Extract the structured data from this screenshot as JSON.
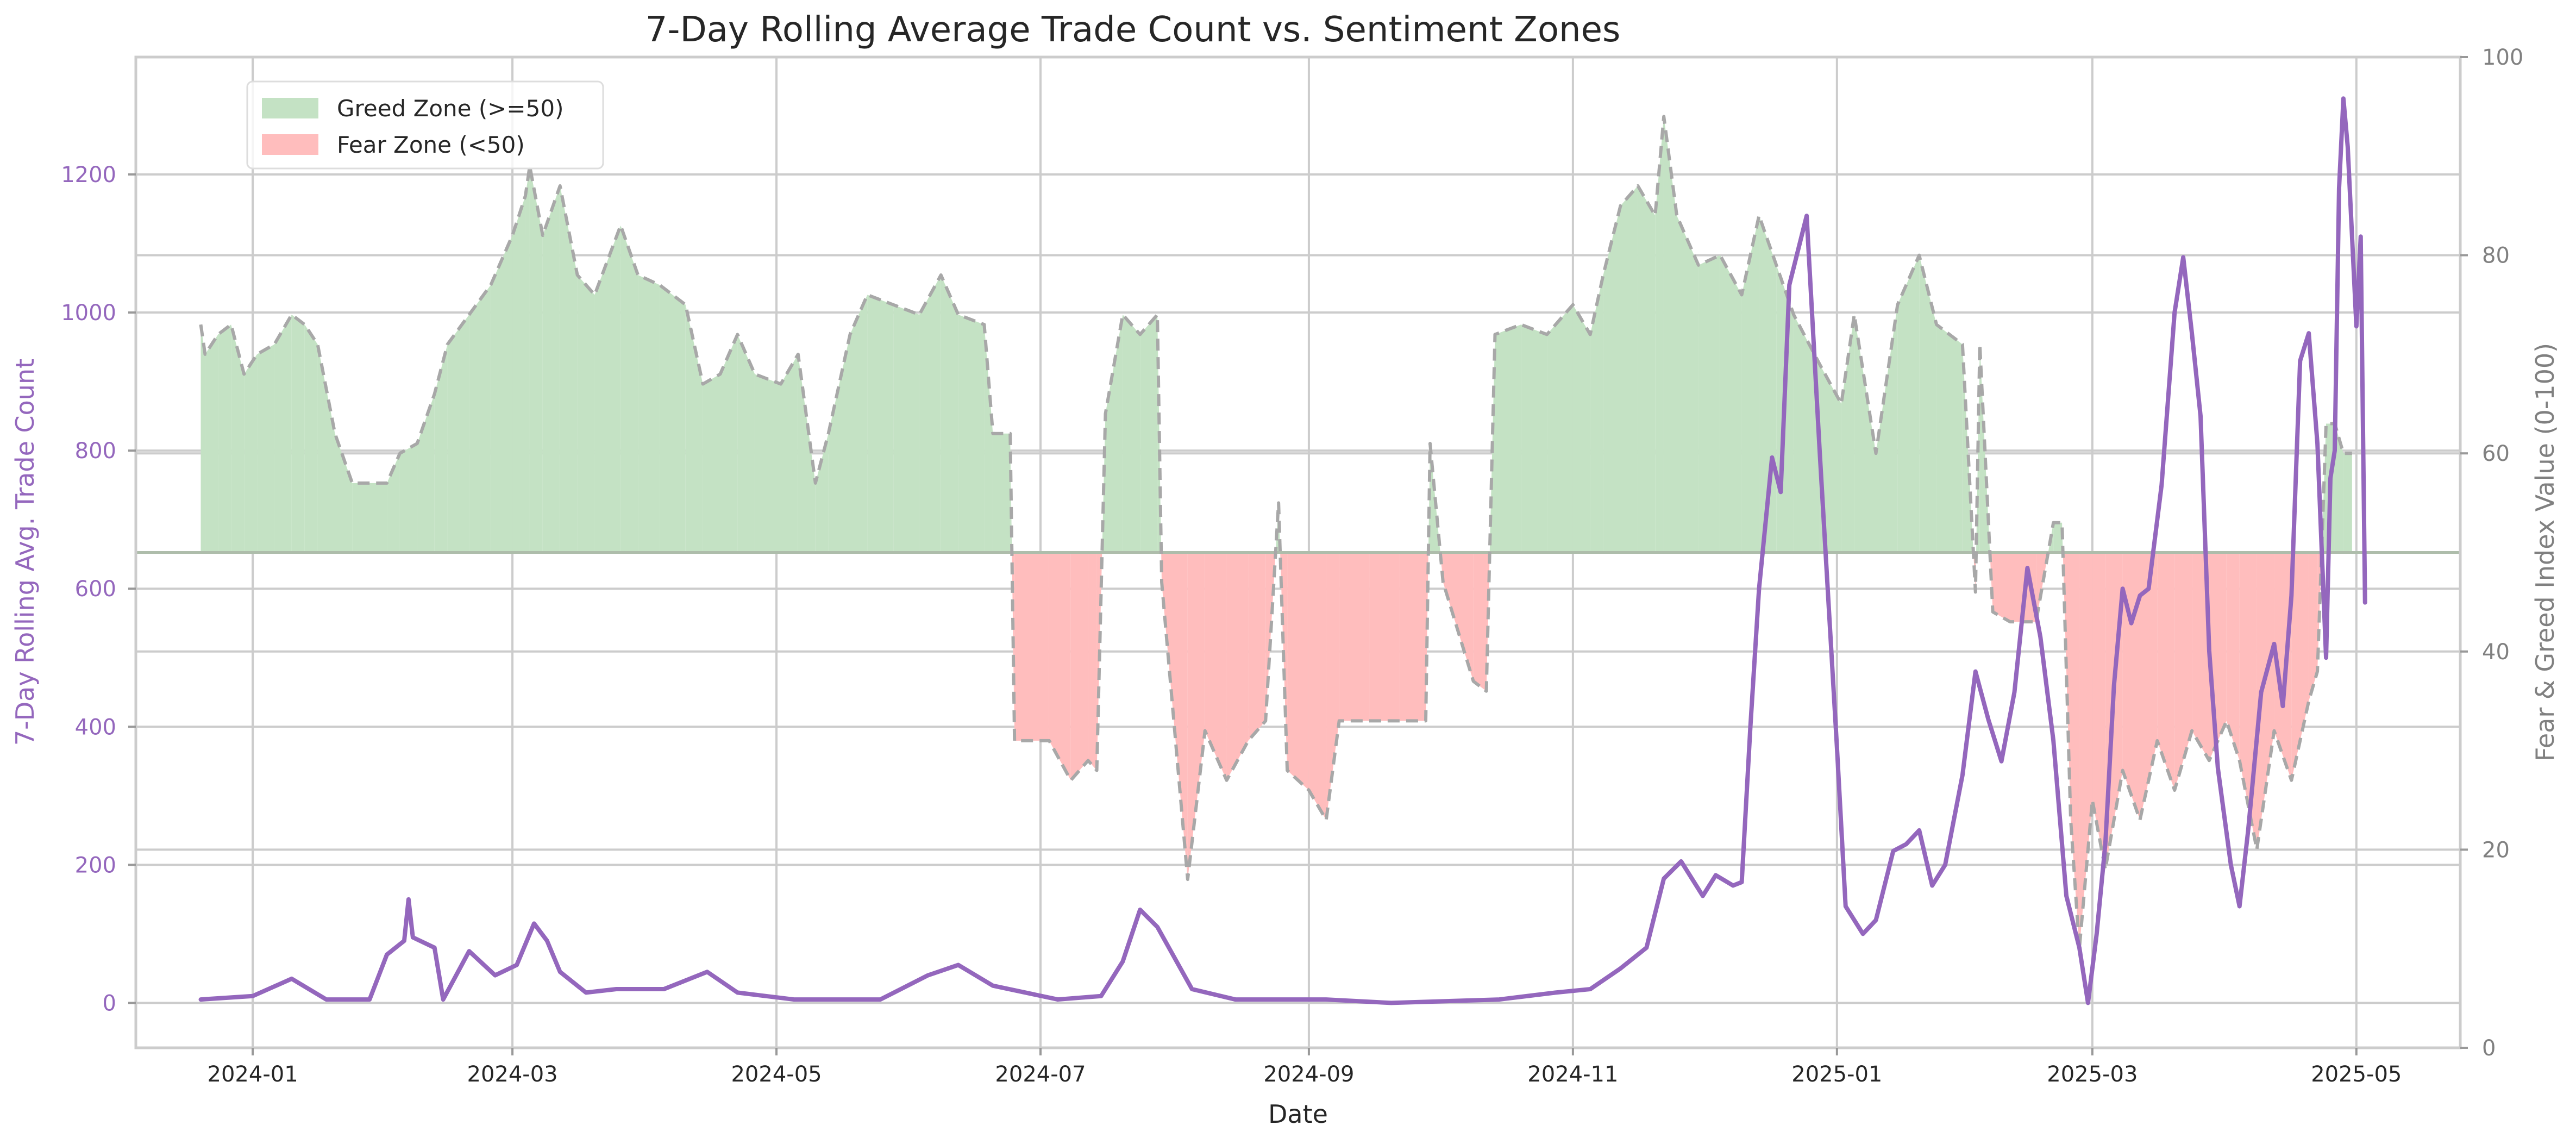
{
  "chart_data": {
    "type": "line",
    "title": "7-Day Rolling Average Trade Count vs. Sentiment Zones",
    "xlabel": "Date",
    "ylabel_left": "7-Day Rolling Avg. Trade Count",
    "ylabel_right": "Fear & Greed Index Value (0-100)",
    "x_range": [
      "2023-12-05",
      "2025-05-25"
    ],
    "ylim_left": [
      -65,
      1370
    ],
    "ylim_right": [
      0,
      100
    ],
    "x_ticks": [
      "2024-01",
      "2024-03",
      "2024-05",
      "2024-07",
      "2024-09",
      "2024-11",
      "2025-01",
      "2025-03",
      "2025-05"
    ],
    "y_ticks_left": [
      0,
      200,
      400,
      600,
      800,
      1000,
      1200
    ],
    "y_ticks_right": [
      0,
      20,
      40,
      60,
      80,
      100
    ],
    "threshold": 50,
    "grid": true,
    "legend_position": "upper-left",
    "legend": [
      {
        "label": "Greed Zone (>=50)",
        "color": "#c4e2c4"
      },
      {
        "label": "Fear Zone (<50)",
        "color": "#ffbdbd"
      }
    ],
    "colors": {
      "trade_line": "#9467bd",
      "fg_line": "#a8a8a8",
      "greed_fill": "#c4e2c4",
      "fear_fill": "#ffbdbd",
      "left_axis_text": "#9467bd",
      "right_axis_text": "#808080",
      "grid": "#cccccc"
    },
    "fear_greed_series": {
      "name": "Fear & Greed Index",
      "points": [
        [
          "2023-12-20",
          73
        ],
        [
          "2023-12-21",
          70
        ],
        [
          "2023-12-24",
          72
        ],
        [
          "2023-12-27",
          73
        ],
        [
          "2023-12-30",
          68
        ],
        [
          "2024-01-02",
          70
        ],
        [
          "2024-01-06",
          71
        ],
        [
          "2024-01-10",
          74
        ],
        [
          "2024-01-13",
          73
        ],
        [
          "2024-01-16",
          71
        ],
        [
          "2024-01-20",
          62
        ],
        [
          "2024-01-24",
          57
        ],
        [
          "2024-02-01",
          57
        ],
        [
          "2024-02-04",
          60
        ],
        [
          "2024-02-08",
          61
        ],
        [
          "2024-02-12",
          66
        ],
        [
          "2024-02-15",
          71
        ],
        [
          "2024-02-20",
          74
        ],
        [
          "2024-02-25",
          77
        ],
        [
          "2024-03-01",
          82
        ],
        [
          "2024-03-04",
          86
        ],
        [
          "2024-03-05",
          89
        ],
        [
          "2024-03-08",
          82
        ],
        [
          "2024-03-12",
          87
        ],
        [
          "2024-03-16",
          78
        ],
        [
          "2024-03-20",
          76
        ],
        [
          "2024-03-26",
          83
        ],
        [
          "2024-03-30",
          78
        ],
        [
          "2024-04-04",
          77
        ],
        [
          "2024-04-10",
          75
        ],
        [
          "2024-04-14",
          67
        ],
        [
          "2024-04-18",
          68
        ],
        [
          "2024-04-22",
          72
        ],
        [
          "2024-04-26",
          68
        ],
        [
          "2024-05-02",
          67
        ],
        [
          "2024-05-06",
          70
        ],
        [
          "2024-05-10",
          57
        ],
        [
          "2024-05-13",
          62
        ],
        [
          "2024-05-18",
          72
        ],
        [
          "2024-05-22",
          76
        ],
        [
          "2024-05-28",
          75
        ],
        [
          "2024-06-03",
          74
        ],
        [
          "2024-06-08",
          78
        ],
        [
          "2024-06-12",
          74
        ],
        [
          "2024-06-18",
          73
        ],
        [
          "2024-06-20",
          62
        ],
        [
          "2024-06-24",
          62
        ],
        [
          "2024-06-25",
          31
        ],
        [
          "2024-07-03",
          31
        ],
        [
          "2024-07-08",
          27
        ],
        [
          "2024-07-12",
          29
        ],
        [
          "2024-07-14",
          28
        ],
        [
          "2024-07-16",
          64
        ],
        [
          "2024-07-20",
          74
        ],
        [
          "2024-07-24",
          72
        ],
        [
          "2024-07-28",
          74
        ],
        [
          "2024-07-29",
          47
        ],
        [
          "2024-08-04",
          17
        ],
        [
          "2024-08-08",
          32
        ],
        [
          "2024-08-13",
          27
        ],
        [
          "2024-08-18",
          31
        ],
        [
          "2024-08-22",
          33
        ],
        [
          "2024-08-25",
          55
        ],
        [
          "2024-08-27",
          28
        ],
        [
          "2024-09-01",
          26
        ],
        [
          "2024-09-05",
          23
        ],
        [
          "2024-09-08",
          33
        ],
        [
          "2024-09-15",
          33
        ],
        [
          "2024-09-22",
          33
        ],
        [
          "2024-09-28",
          33
        ],
        [
          "2024-09-29",
          61
        ],
        [
          "2024-10-02",
          47
        ],
        [
          "2024-10-09",
          37
        ],
        [
          "2024-10-12",
          36
        ],
        [
          "2024-10-14",
          72
        ],
        [
          "2024-10-20",
          73
        ],
        [
          "2024-10-26",
          72
        ],
        [
          "2024-11-01",
          75
        ],
        [
          "2024-11-05",
          72
        ],
        [
          "2024-11-08",
          78
        ],
        [
          "2024-11-12",
          85
        ],
        [
          "2024-11-16",
          87
        ],
        [
          "2024-11-20",
          84
        ],
        [
          "2024-11-22",
          94
        ],
        [
          "2024-11-25",
          84
        ],
        [
          "2024-11-30",
          79
        ],
        [
          "2024-12-05",
          80
        ],
        [
          "2024-12-10",
          76
        ],
        [
          "2024-12-14",
          84
        ],
        [
          "2024-12-18",
          79
        ],
        [
          "2024-12-22",
          74
        ],
        [
          "2024-12-28",
          69
        ],
        [
          "2025-01-02",
          65
        ],
        [
          "2025-01-05",
          74
        ],
        [
          "2025-01-10",
          60
        ],
        [
          "2025-01-15",
          75
        ],
        [
          "2025-01-20",
          80
        ],
        [
          "2025-01-24",
          73
        ],
        [
          "2025-01-30",
          71
        ],
        [
          "2025-02-02",
          46
        ],
        [
          "2025-02-03",
          71
        ],
        [
          "2025-02-06",
          44
        ],
        [
          "2025-02-10",
          43
        ],
        [
          "2025-02-16",
          43
        ],
        [
          "2025-02-20",
          53
        ],
        [
          "2025-02-22",
          53
        ],
        [
          "2025-02-24",
          23
        ],
        [
          "2025-02-26",
          10
        ],
        [
          "2025-03-01",
          25
        ],
        [
          "2025-03-04",
          18
        ],
        [
          "2025-03-08",
          28
        ],
        [
          "2025-03-12",
          23
        ],
        [
          "2025-03-16",
          31
        ],
        [
          "2025-03-20",
          26
        ],
        [
          "2025-03-24",
          32
        ],
        [
          "2025-03-28",
          29
        ],
        [
          "2025-04-01",
          33
        ],
        [
          "2025-04-04",
          29
        ],
        [
          "2025-04-08",
          20
        ],
        [
          "2025-04-12",
          32
        ],
        [
          "2025-04-16",
          27
        ],
        [
          "2025-04-20",
          35
        ],
        [
          "2025-04-22",
          38
        ],
        [
          "2025-04-24",
          63
        ],
        [
          "2025-04-26",
          63
        ],
        [
          "2025-04-28",
          60
        ],
        [
          "2025-04-30",
          60
        ]
      ]
    },
    "trade_count_series": {
      "name": "7-Day Rolling Avg. Trade Count",
      "points": [
        [
          "2023-12-20",
          5
        ],
        [
          "2024-01-01",
          10
        ],
        [
          "2024-01-10",
          35
        ],
        [
          "2024-01-18",
          5
        ],
        [
          "2024-01-28",
          5
        ],
        [
          "2024-02-01",
          70
        ],
        [
          "2024-02-05",
          90
        ],
        [
          "2024-02-06",
          150
        ],
        [
          "2024-02-07",
          95
        ],
        [
          "2024-02-12",
          80
        ],
        [
          "2024-02-14",
          5
        ],
        [
          "2024-02-20",
          75
        ],
        [
          "2024-02-26",
          40
        ],
        [
          "2024-03-02",
          55
        ],
        [
          "2024-03-06",
          115
        ],
        [
          "2024-03-09",
          90
        ],
        [
          "2024-03-12",
          45
        ],
        [
          "2024-03-18",
          15
        ],
        [
          "2024-03-25",
          20
        ],
        [
          "2024-04-05",
          20
        ],
        [
          "2024-04-15",
          45
        ],
        [
          "2024-04-22",
          15
        ],
        [
          "2024-05-05",
          5
        ],
        [
          "2024-05-25",
          5
        ],
        [
          "2024-06-05",
          40
        ],
        [
          "2024-06-12",
          55
        ],
        [
          "2024-06-20",
          25
        ],
        [
          "2024-07-05",
          5
        ],
        [
          "2024-07-15",
          10
        ],
        [
          "2024-07-20",
          60
        ],
        [
          "2024-07-24",
          135
        ],
        [
          "2024-07-28",
          110
        ],
        [
          "2024-08-05",
          20
        ],
        [
          "2024-08-15",
          5
        ],
        [
          "2024-09-05",
          5
        ],
        [
          "2024-09-20",
          0
        ],
        [
          "2024-10-15",
          5
        ],
        [
          "2024-10-28",
          15
        ],
        [
          "2024-11-05",
          20
        ],
        [
          "2024-11-12",
          50
        ],
        [
          "2024-11-18",
          80
        ],
        [
          "2024-11-22",
          180
        ],
        [
          "2024-11-26",
          205
        ],
        [
          "2024-12-01",
          155
        ],
        [
          "2024-12-04",
          185
        ],
        [
          "2024-12-08",
          170
        ],
        [
          "2024-12-10",
          175
        ],
        [
          "2024-12-12",
          400
        ],
        [
          "2024-12-14",
          600
        ],
        [
          "2024-12-17",
          790
        ],
        [
          "2024-12-19",
          740
        ],
        [
          "2024-12-21",
          1040
        ],
        [
          "2024-12-25",
          1140
        ],
        [
          "2024-12-28",
          800
        ],
        [
          "2025-01-01",
          370
        ],
        [
          "2025-01-03",
          140
        ],
        [
          "2025-01-07",
          100
        ],
        [
          "2025-01-10",
          120
        ],
        [
          "2025-01-14",
          220
        ],
        [
          "2025-01-17",
          230
        ],
        [
          "2025-01-20",
          250
        ],
        [
          "2025-01-23",
          170
        ],
        [
          "2025-01-26",
          200
        ],
        [
          "2025-01-30",
          330
        ],
        [
          "2025-02-02",
          480
        ],
        [
          "2025-02-05",
          410
        ],
        [
          "2025-02-08",
          350
        ],
        [
          "2025-02-11",
          450
        ],
        [
          "2025-02-14",
          630
        ],
        [
          "2025-02-17",
          530
        ],
        [
          "2025-02-20",
          380
        ],
        [
          "2025-02-23",
          155
        ],
        [
          "2025-02-26",
          80
        ],
        [
          "2025-02-28",
          0
        ],
        [
          "2025-03-02",
          100
        ],
        [
          "2025-03-04",
          230
        ],
        [
          "2025-03-06",
          460
        ],
        [
          "2025-03-08",
          600
        ],
        [
          "2025-03-10",
          550
        ],
        [
          "2025-03-12",
          590
        ],
        [
          "2025-03-14",
          600
        ],
        [
          "2025-03-17",
          750
        ],
        [
          "2025-03-20",
          1000
        ],
        [
          "2025-03-22",
          1080
        ],
        [
          "2025-03-24",
          970
        ],
        [
          "2025-03-26",
          850
        ],
        [
          "2025-03-28",
          510
        ],
        [
          "2025-03-30",
          340
        ],
        [
          "2025-04-02",
          200
        ],
        [
          "2025-04-04",
          140
        ],
        [
          "2025-04-06",
          250
        ],
        [
          "2025-04-09",
          450
        ],
        [
          "2025-04-12",
          520
        ],
        [
          "2025-04-14",
          430
        ],
        [
          "2025-04-16",
          590
        ],
        [
          "2025-04-18",
          930
        ],
        [
          "2025-04-20",
          970
        ],
        [
          "2025-04-22",
          810
        ],
        [
          "2025-04-24",
          500
        ],
        [
          "2025-04-25",
          760
        ],
        [
          "2025-04-26",
          800
        ],
        [
          "2025-04-27",
          1180
        ],
        [
          "2025-04-28",
          1310
        ],
        [
          "2025-04-29",
          1240
        ],
        [
          "2025-05-01",
          980
        ],
        [
          "2025-05-02",
          1110
        ],
        [
          "2025-05-03",
          580
        ]
      ]
    }
  }
}
